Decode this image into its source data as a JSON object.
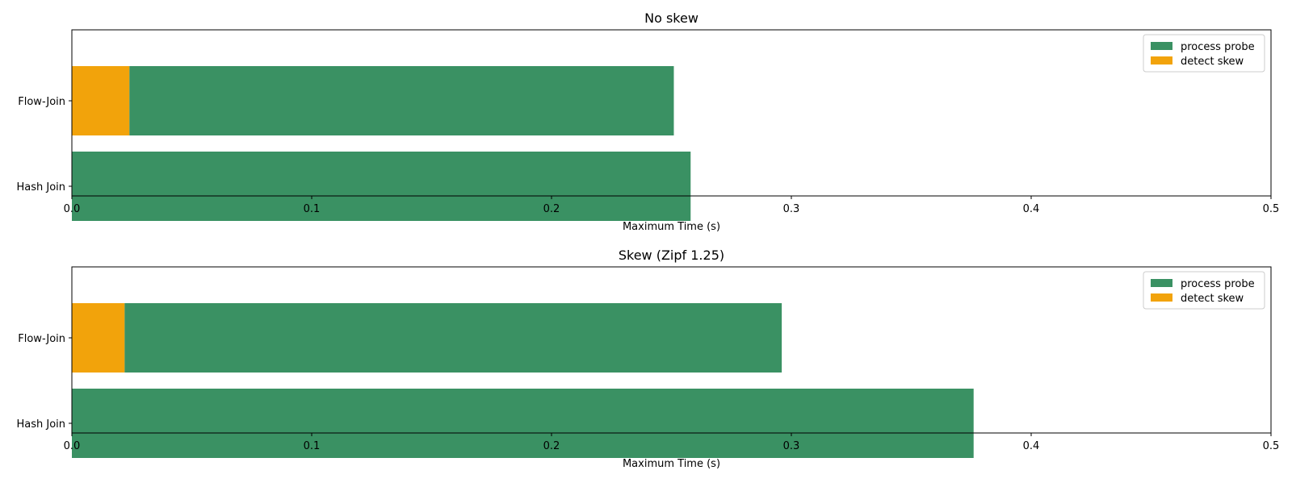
{
  "chart_data": [
    {
      "type": "bar",
      "orientation": "horizontal",
      "stacked": true,
      "title": "No skew",
      "xlabel": "Maximum Time (s)",
      "ylabel": "",
      "xlim": [
        0,
        0.5
      ],
      "xticks": [
        "0.0",
        "0.1",
        "0.2",
        "0.3",
        "0.4",
        "0.5"
      ],
      "categories": [
        "Flow-Join",
        "Hash Join"
      ],
      "series": [
        {
          "name": "process probe",
          "color": "#3a9163",
          "values": [
            0.227,
            0.258
          ]
        },
        {
          "name": "detect skew",
          "color": "#f2a30b",
          "values": [
            0.024,
            0
          ]
        }
      ],
      "legend": {
        "position": "top-right"
      },
      "grid": false
    },
    {
      "type": "bar",
      "orientation": "horizontal",
      "stacked": true,
      "title": "Skew (Zipf 1.25)",
      "xlabel": "Maximum Time (s)",
      "ylabel": "",
      "xlim": [
        0,
        0.5
      ],
      "xticks": [
        "0.0",
        "0.1",
        "0.2",
        "0.3",
        "0.4",
        "0.5"
      ],
      "categories": [
        "Flow-Join",
        "Hash Join"
      ],
      "series": [
        {
          "name": "process probe",
          "color": "#3a9163",
          "values": [
            0.274,
            0.376
          ]
        },
        {
          "name": "detect skew",
          "color": "#f2a30b",
          "values": [
            0.022,
            0
          ]
        }
      ],
      "legend": {
        "position": "top-right"
      },
      "grid": false
    }
  ]
}
